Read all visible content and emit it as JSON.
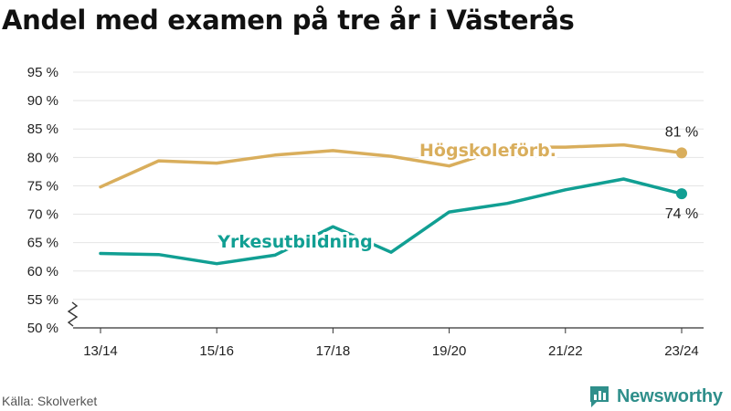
{
  "title": "Andel med examen på tre år i Västerås",
  "source": "Källa: Skolverket",
  "brand": {
    "name": "Newsworthy",
    "icon": "newsworthy-logo-icon"
  },
  "colors": {
    "hogskole": "#d9ae5c",
    "yrkes": "#119f93",
    "grid": "#e4e4e4",
    "axis": "#333333"
  },
  "chart_data": {
    "type": "line",
    "title": "Andel med examen på tre år i Västerås",
    "categories": [
      "13/14",
      "14/15",
      "15/16",
      "16/17",
      "17/18",
      "18/19",
      "19/20",
      "20/21",
      "21/22",
      "22/23",
      "23/24"
    ],
    "x_tick_labels": [
      "13/14",
      "15/16",
      "17/18",
      "19/20",
      "21/22",
      "23/24"
    ],
    "y_ticks": [
      50,
      55,
      60,
      65,
      70,
      75,
      80,
      85,
      90,
      95
    ],
    "y_tick_labels": [
      "50 %",
      "55 %",
      "60 %",
      "65 %",
      "70 %",
      "75 %",
      "80 %",
      "85 %",
      "90 %",
      "95 %"
    ],
    "ylim": [
      50,
      95
    ],
    "y_axis_break": true,
    "grid": true,
    "series": [
      {
        "name": "Högskoleförb.",
        "color": "#d9ae5c",
        "values": [
          74.8,
          79.4,
          79.0,
          80.4,
          81.2,
          80.2,
          78.5,
          81.8,
          81.8,
          82.2,
          80.8
        ],
        "end_label": "81 %"
      },
      {
        "name": "Yrkesutbildning",
        "color": "#119f93",
        "values": [
          63.1,
          62.9,
          61.3,
          62.8,
          67.8,
          63.3,
          70.4,
          71.9,
          74.3,
          76.2,
          73.6
        ],
        "end_label": "74 %"
      }
    ]
  }
}
